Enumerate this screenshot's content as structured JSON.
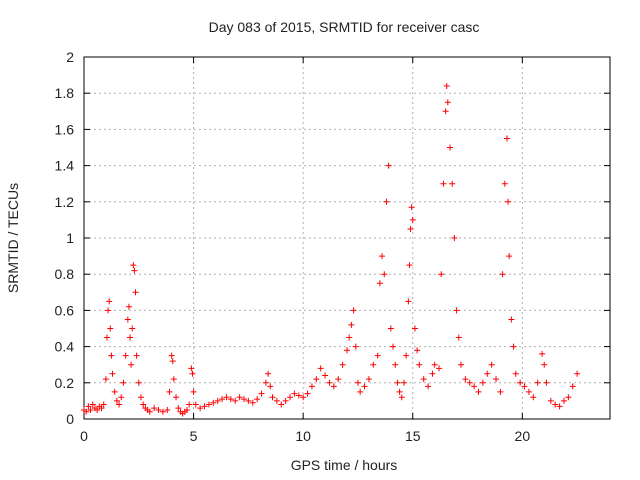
{
  "chart_data": {
    "type": "scatter",
    "title": "Day 083 of 2015, SRMTID for receiver casc",
    "xlabel": "GPS time / hours",
    "ylabel": "SRMTID / TECUs",
    "xlim": [
      0,
      24
    ],
    "ylim": [
      0,
      2
    ],
    "xticks": [
      0,
      5,
      10,
      15,
      20
    ],
    "xtick_labels": [
      "0",
      "5",
      "10",
      "15",
      "20"
    ],
    "yticks": [
      0,
      0.2,
      0.4,
      0.6,
      0.8,
      1,
      1.2,
      1.4,
      1.6,
      1.8,
      2
    ],
    "ytick_labels": [
      "0",
      "0.2",
      "0.4",
      "0.6",
      "0.8",
      "1",
      "1.2",
      "1.4",
      "1.6",
      "1.8",
      "2"
    ],
    "grid": true,
    "marker": "+",
    "color": "#ff0000",
    "series": [
      {
        "name": "SRMTID",
        "points": [
          [
            0.0,
            0.05
          ],
          [
            0.1,
            0.04
          ],
          [
            0.2,
            0.07
          ],
          [
            0.3,
            0.05
          ],
          [
            0.4,
            0.08
          ],
          [
            0.5,
            0.06
          ],
          [
            0.6,
            0.05
          ],
          [
            0.7,
            0.07
          ],
          [
            0.8,
            0.06
          ],
          [
            0.9,
            0.08
          ],
          [
            1.0,
            0.22
          ],
          [
            1.05,
            0.45
          ],
          [
            1.1,
            0.6
          ],
          [
            1.15,
            0.65
          ],
          [
            1.2,
            0.5
          ],
          [
            1.25,
            0.35
          ],
          [
            1.3,
            0.25
          ],
          [
            1.4,
            0.15
          ],
          [
            1.5,
            0.1
          ],
          [
            1.6,
            0.08
          ],
          [
            1.7,
            0.12
          ],
          [
            1.8,
            0.2
          ],
          [
            1.9,
            0.35
          ],
          [
            2.0,
            0.55
          ],
          [
            2.05,
            0.62
          ],
          [
            2.1,
            0.45
          ],
          [
            2.15,
            0.3
          ],
          [
            2.2,
            0.5
          ],
          [
            2.25,
            0.85
          ],
          [
            2.3,
            0.82
          ],
          [
            2.35,
            0.7
          ],
          [
            2.4,
            0.35
          ],
          [
            2.5,
            0.2
          ],
          [
            2.6,
            0.12
          ],
          [
            2.7,
            0.08
          ],
          [
            2.8,
            0.06
          ],
          [
            2.9,
            0.05
          ],
          [
            3.0,
            0.04
          ],
          [
            3.2,
            0.06
          ],
          [
            3.4,
            0.05
          ],
          [
            3.6,
            0.04
          ],
          [
            3.8,
            0.05
          ],
          [
            3.9,
            0.15
          ],
          [
            4.0,
            0.35
          ],
          [
            4.05,
            0.32
          ],
          [
            4.1,
            0.22
          ],
          [
            4.2,
            0.12
          ],
          [
            4.3,
            0.06
          ],
          [
            4.4,
            0.04
          ],
          [
            4.5,
            0.03
          ],
          [
            4.6,
            0.04
          ],
          [
            4.7,
            0.05
          ],
          [
            4.8,
            0.08
          ],
          [
            4.9,
            0.28
          ],
          [
            4.95,
            0.25
          ],
          [
            5.0,
            0.15
          ],
          [
            5.1,
            0.08
          ],
          [
            5.3,
            0.06
          ],
          [
            5.5,
            0.07
          ],
          [
            5.7,
            0.08
          ],
          [
            5.9,
            0.09
          ],
          [
            6.1,
            0.1
          ],
          [
            6.3,
            0.11
          ],
          [
            6.5,
            0.12
          ],
          [
            6.7,
            0.11
          ],
          [
            6.9,
            0.1
          ],
          [
            7.1,
            0.12
          ],
          [
            7.3,
            0.11
          ],
          [
            7.5,
            0.1
          ],
          [
            7.7,
            0.09
          ],
          [
            7.9,
            0.11
          ],
          [
            8.1,
            0.14
          ],
          [
            8.3,
            0.2
          ],
          [
            8.4,
            0.25
          ],
          [
            8.5,
            0.18
          ],
          [
            8.6,
            0.12
          ],
          [
            8.8,
            0.1
          ],
          [
            9.0,
            0.08
          ],
          [
            9.2,
            0.1
          ],
          [
            9.4,
            0.12
          ],
          [
            9.6,
            0.14
          ],
          [
            9.8,
            0.13
          ],
          [
            10.0,
            0.12
          ],
          [
            10.2,
            0.14
          ],
          [
            10.4,
            0.18
          ],
          [
            10.6,
            0.22
          ],
          [
            10.8,
            0.28
          ],
          [
            11.0,
            0.24
          ],
          [
            11.2,
            0.2
          ],
          [
            11.4,
            0.18
          ],
          [
            11.6,
            0.22
          ],
          [
            11.8,
            0.3
          ],
          [
            12.0,
            0.38
          ],
          [
            12.1,
            0.45
          ],
          [
            12.2,
            0.52
          ],
          [
            12.3,
            0.6
          ],
          [
            12.4,
            0.4
          ],
          [
            12.5,
            0.2
          ],
          [
            12.6,
            0.15
          ],
          [
            12.8,
            0.18
          ],
          [
            13.0,
            0.22
          ],
          [
            13.2,
            0.3
          ],
          [
            13.4,
            0.35
          ],
          [
            13.5,
            0.75
          ],
          [
            13.6,
            0.9
          ],
          [
            13.7,
            0.8
          ],
          [
            13.8,
            1.2
          ],
          [
            13.9,
            1.4
          ],
          [
            14.0,
            0.5
          ],
          [
            14.1,
            0.4
          ],
          [
            14.2,
            0.3
          ],
          [
            14.3,
            0.2
          ],
          [
            14.4,
            0.15
          ],
          [
            14.5,
            0.12
          ],
          [
            14.6,
            0.2
          ],
          [
            14.7,
            0.35
          ],
          [
            14.8,
            0.65
          ],
          [
            14.85,
            0.85
          ],
          [
            14.9,
            1.05
          ],
          [
            14.95,
            1.17
          ],
          [
            15.0,
            1.1
          ],
          [
            15.1,
            0.5
          ],
          [
            15.2,
            0.38
          ],
          [
            15.3,
            0.3
          ],
          [
            15.5,
            0.22
          ],
          [
            15.7,
            0.18
          ],
          [
            15.9,
            0.25
          ],
          [
            16.0,
            0.3
          ],
          [
            16.2,
            0.28
          ],
          [
            16.3,
            0.8
          ],
          [
            16.4,
            1.3
          ],
          [
            16.5,
            1.7
          ],
          [
            16.55,
            1.84
          ],
          [
            16.6,
            1.75
          ],
          [
            16.7,
            1.5
          ],
          [
            16.8,
            1.3
          ],
          [
            16.9,
            1.0
          ],
          [
            17.0,
            0.6
          ],
          [
            17.1,
            0.45
          ],
          [
            17.2,
            0.3
          ],
          [
            17.4,
            0.22
          ],
          [
            17.6,
            0.2
          ],
          [
            17.8,
            0.18
          ],
          [
            18.0,
            0.15
          ],
          [
            18.2,
            0.2
          ],
          [
            18.4,
            0.25
          ],
          [
            18.6,
            0.3
          ],
          [
            18.8,
            0.22
          ],
          [
            19.0,
            0.15
          ],
          [
            19.1,
            0.8
          ],
          [
            19.2,
            1.3
          ],
          [
            19.3,
            1.55
          ],
          [
            19.35,
            1.2
          ],
          [
            19.4,
            0.9
          ],
          [
            19.5,
            0.55
          ],
          [
            19.6,
            0.4
          ],
          [
            19.7,
            0.25
          ],
          [
            19.9,
            0.2
          ],
          [
            20.1,
            0.18
          ],
          [
            20.3,
            0.15
          ],
          [
            20.5,
            0.12
          ],
          [
            20.7,
            0.2
          ],
          [
            20.9,
            0.36
          ],
          [
            21.0,
            0.3
          ],
          [
            21.1,
            0.2
          ],
          [
            21.3,
            0.1
          ],
          [
            21.5,
            0.08
          ],
          [
            21.7,
            0.07
          ],
          [
            21.9,
            0.1
          ],
          [
            22.1,
            0.12
          ],
          [
            22.3,
            0.18
          ],
          [
            22.5,
            0.25
          ]
        ]
      }
    ]
  }
}
